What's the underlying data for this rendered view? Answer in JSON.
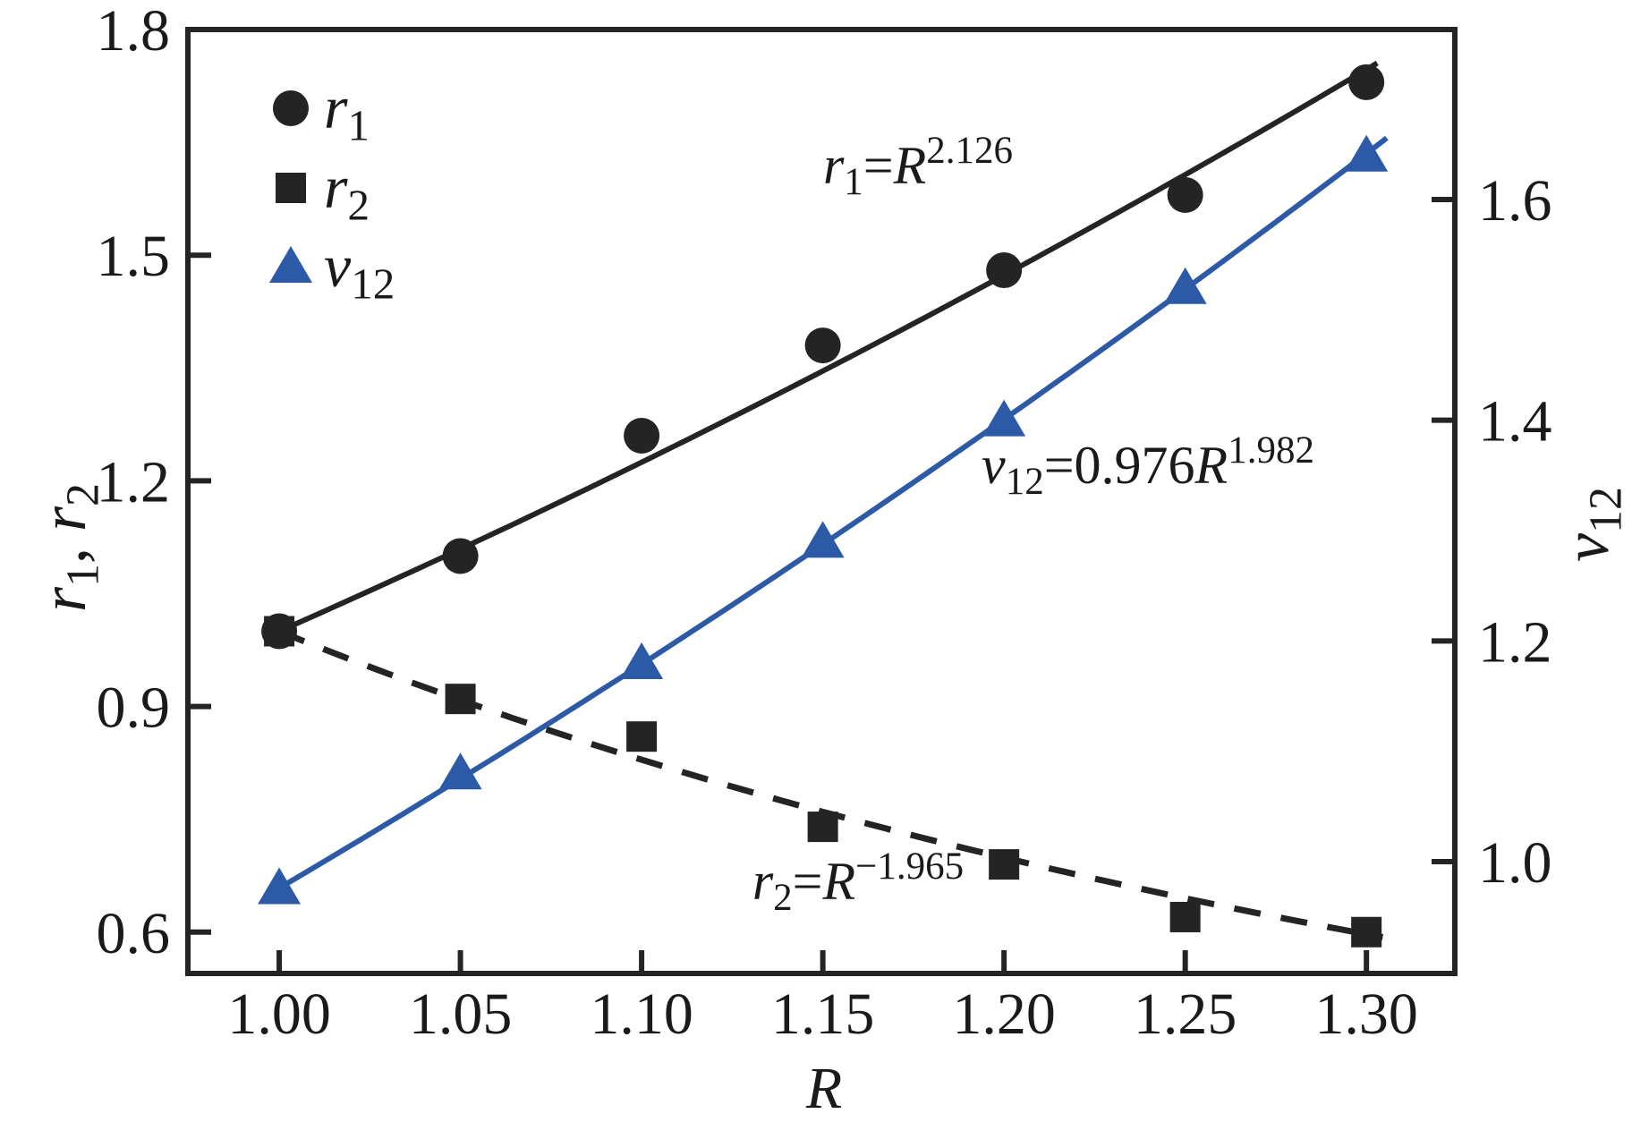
{
  "figure": {
    "background": "#ffffff",
    "frame_color": "#242424",
    "text_color": "#1a1a1a",
    "accent_blue": "#2d5aa7"
  },
  "chart_data": {
    "type": "scatter",
    "title": "",
    "x": [
      1.0,
      1.05,
      1.1,
      1.15,
      1.2,
      1.25,
      1.3
    ],
    "x_axis": {
      "label": "R",
      "label_rich": [
        [
          "R",
          "i"
        ]
      ],
      "tick_labels": [
        "1.00",
        "1.05",
        "1.10",
        "1.15",
        "1.20",
        "1.25",
        "1.30"
      ],
      "tick_values": [
        1.0,
        1.05,
        1.1,
        1.15,
        1.2,
        1.25,
        1.3
      ],
      "range": [
        0.9748,
        1.3244
      ],
      "grid": false
    },
    "y_left_axis": {
      "label": "r1, r2",
      "label_rich": [
        [
          "r",
          "i"
        ],
        [
          "1",
          "sub"
        ],
        [
          ", ",
          "n"
        ],
        [
          "r",
          "i"
        ],
        [
          "2",
          "sub"
        ]
      ],
      "tick_labels": [
        "0.6",
        "0.9",
        "1.2",
        "1.5",
        "1.8"
      ],
      "tick_values": [
        0.6,
        0.9,
        1.2,
        1.5,
        1.8
      ],
      "range": [
        0.545,
        1.8
      ],
      "grid": false
    },
    "y_right_axis": {
      "label": "v12",
      "label_rich": [
        [
          "v",
          "i"
        ],
        [
          "12",
          "sub"
        ]
      ],
      "tick_labels": [
        "1.0",
        "1.2",
        "1.4",
        "1.6"
      ],
      "tick_values": [
        1.0,
        1.2,
        1.4,
        1.6
      ],
      "range": [
        0.8986,
        1.7541
      ],
      "grid": false
    },
    "legend_position": "upper-left",
    "series": [
      {
        "id": "r1",
        "name": "r1",
        "legend_rich": [
          [
            "r",
            "i"
          ],
          [
            "1",
            "sub"
          ]
        ],
        "marker": "circle",
        "color": "#242424",
        "y_axis": "left",
        "values": [
          1.0,
          1.1,
          1.26,
          1.38,
          1.48,
          1.58,
          1.73
        ],
        "fit": {
          "equation": "r1 = R^2.126",
          "equation_rich": [
            [
              "r",
              "i"
            ],
            [
              "1",
              "sub"
            ],
            [
              "=",
              "n"
            ],
            [
              "R",
              "i"
            ],
            [
              "2.126",
              "sup"
            ]
          ],
          "coefficient": 1.0,
          "exponent": 2.126,
          "line_style": "solid",
          "color": "#242424",
          "x_start": 1.0,
          "x_end": 1.303
        }
      },
      {
        "id": "r2",
        "name": "r2",
        "legend_rich": [
          [
            "r",
            "i"
          ],
          [
            "2",
            "sub"
          ]
        ],
        "marker": "square",
        "color": "#242424",
        "y_axis": "left",
        "values": [
          1.0,
          0.91,
          0.86,
          0.74,
          0.69,
          0.62,
          0.6
        ],
        "fit": {
          "equation": "r2 = R^-1.965",
          "equation_rich": [
            [
              "r",
              "i"
            ],
            [
              "2",
              "sub"
            ],
            [
              "=",
              "n"
            ],
            [
              "R",
              "i"
            ],
            [
              "−1.965",
              "sup"
            ]
          ],
          "coefficient": 1.0,
          "exponent": -1.965,
          "line_style": "dashed",
          "color": "#242424",
          "x_start": 1.0,
          "x_end": 1.3045
        }
      },
      {
        "id": "v12",
        "name": "v12",
        "legend_rich": [
          [
            "v",
            "i"
          ],
          [
            "12",
            "sub"
          ]
        ],
        "marker": "triangle",
        "color": "#2d5aa7",
        "y_axis": "right",
        "values": [
          0.976,
          1.08,
          1.18,
          1.29,
          1.4,
          1.52,
          1.64
        ],
        "fit": {
          "equation": "v12 = 0.976R^1.982",
          "equation_rich": [
            [
              "v",
              "i"
            ],
            [
              "12",
              "sub"
            ],
            [
              "=0.976",
              "n"
            ],
            [
              "R",
              "i"
            ],
            [
              "1.982",
              "sup"
            ]
          ],
          "coefficient": 0.976,
          "exponent": 1.982,
          "line_style": "solid",
          "color": "#2d5aa7",
          "x_start": 1.0,
          "x_end": 1.3056
        }
      }
    ]
  }
}
